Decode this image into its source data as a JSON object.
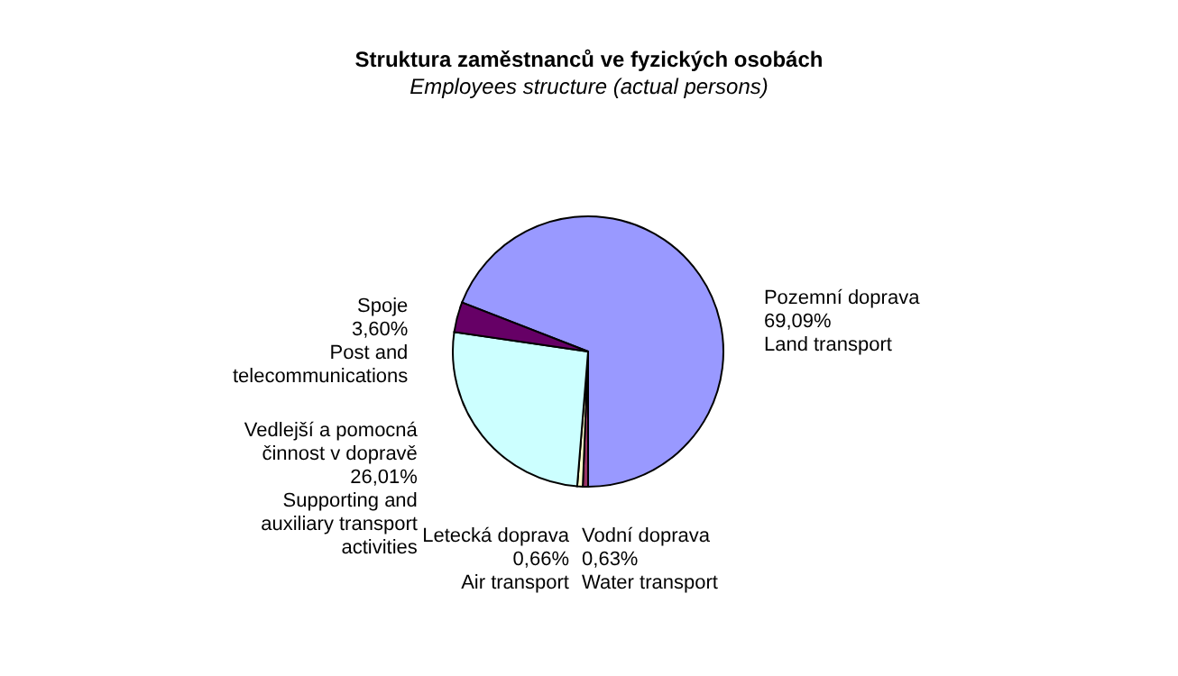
{
  "chart_data": {
    "type": "pie",
    "title": "Struktura zaměstnanců ve fyzických osobách",
    "subtitle": "Employees structure (actual persons)",
    "categories": [
      "Pozemní doprava",
      "Vodní doprava",
      "Letecká doprava",
      "Vedlejší a pomocná\nčinnost v dopravě",
      "Spoje"
    ],
    "values": [
      69.09,
      0.63,
      0.66,
      26.01,
      3.6
    ],
    "value_labels": [
      "69,09%",
      "0,63%",
      "0,66%",
      "26,01%",
      "3,60%"
    ],
    "annotations": [
      "Land transport",
      "Water transport",
      "Air transport",
      "Supporting and\nauxiliary transport\nactivities",
      "Post and\ntelecommunications"
    ],
    "colors": [
      "#9999ff",
      "#993366",
      "#ffffcc",
      "#ccffff",
      "#660066"
    ]
  }
}
